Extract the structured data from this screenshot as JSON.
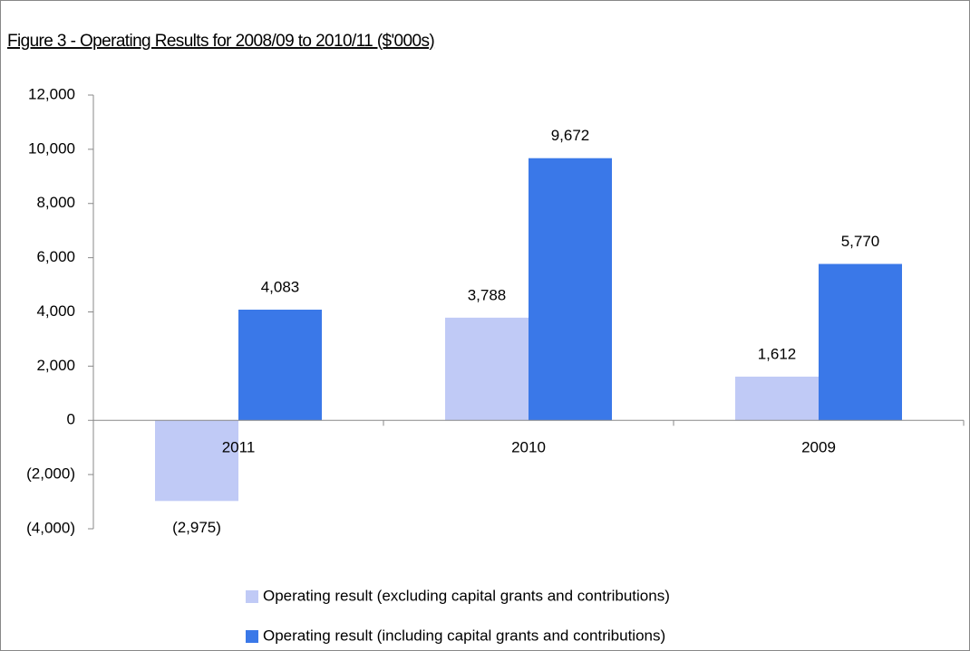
{
  "chart_data": {
    "type": "bar",
    "title": "Figure 3 - Operating Results for 2008/09 to 2010/11 ($'000s)",
    "categories": [
      "2011",
      "2010",
      "2009"
    ],
    "series": [
      {
        "name": "Operating result (excluding capital grants and contributions)",
        "color": "#c0caf6",
        "values": [
          -2975,
          3788,
          1612
        ],
        "value_labels": [
          "(2,975)",
          "3,788",
          "1,612"
        ]
      },
      {
        "name": "Operating result (including capital grants and contributions)",
        "color": "#3a78e8",
        "values": [
          4083,
          9672,
          5770
        ],
        "value_labels": [
          "4,083",
          "9,672",
          "5,770"
        ]
      }
    ],
    "ylim": [
      -4000,
      12000
    ],
    "yticks": [
      {
        "value": -4000,
        "label": "(4,000)"
      },
      {
        "value": -2000,
        "label": "(2,000)"
      },
      0,
      {
        "value": 2000,
        "label": "2,000"
      },
      {
        "value": 4000,
        "label": "4,000"
      },
      {
        "value": 6000,
        "label": "6,000"
      },
      {
        "value": 8000,
        "label": "8,000"
      },
      {
        "value": 10000,
        "label": "10,000"
      },
      {
        "value": 12000,
        "label": "12,000"
      }
    ],
    "grid": false,
    "legend": "bottom"
  }
}
